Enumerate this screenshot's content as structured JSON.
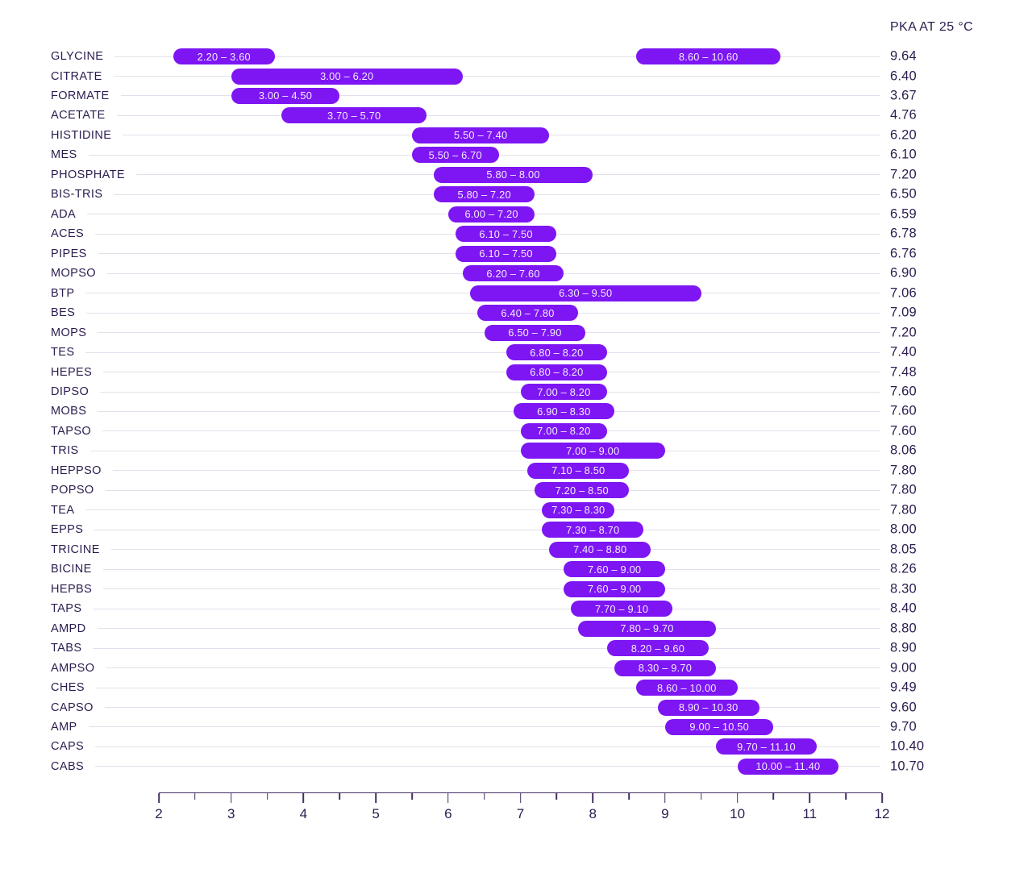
{
  "header": {
    "pka_column": "PKA AT 25 °C"
  },
  "colors": {
    "bar": "#7d16f3",
    "bar_text": "#f3ecfd",
    "text_dark": "#2c1c4f",
    "track_line": "#e4dfeb",
    "axis": "#443061",
    "background": "#ffffff"
  },
  "chart_data": {
    "type": "bar",
    "subtype": "horizontal-range",
    "title": "",
    "xlabel": "",
    "ylabel": "",
    "value_column_header": "PKA AT 25 °C",
    "x_axis": {
      "min": 2,
      "max": 12,
      "major_ticks": [
        2,
        3,
        4,
        5,
        6,
        7,
        8,
        9,
        10,
        11,
        12
      ],
      "minor_step": 0.5
    },
    "grid": "row-track-lines",
    "legend": "none",
    "rows": [
      {
        "name": "GLYCINE",
        "pka": "9.64",
        "ranges": [
          {
            "lo": 2.2,
            "hi": 3.6,
            "label": "2.20 – 3.60"
          },
          {
            "lo": 8.6,
            "hi": 10.6,
            "label": "8.60 – 10.60"
          }
        ]
      },
      {
        "name": "CITRATE",
        "pka": "6.40",
        "ranges": [
          {
            "lo": 3.0,
            "hi": 6.2,
            "label": "3.00 – 6.20"
          }
        ]
      },
      {
        "name": "FORMATE",
        "pka": "3.67",
        "ranges": [
          {
            "lo": 3.0,
            "hi": 4.5,
            "label": "3.00 – 4.50"
          }
        ]
      },
      {
        "name": "ACETATE",
        "pka": "4.76",
        "ranges": [
          {
            "lo": 3.7,
            "hi": 5.7,
            "label": "3.70 – 5.70"
          }
        ]
      },
      {
        "name": "HISTIDINE",
        "pka": "6.20",
        "ranges": [
          {
            "lo": 5.5,
            "hi": 7.4,
            "label": "5.50 – 7.40"
          }
        ]
      },
      {
        "name": "MES",
        "pka": "6.10",
        "ranges": [
          {
            "lo": 5.5,
            "hi": 6.7,
            "label": "5.50 – 6.70"
          }
        ]
      },
      {
        "name": "PHOSPHATE",
        "pka": "7.20",
        "ranges": [
          {
            "lo": 5.8,
            "hi": 8.0,
            "label": "5.80 – 8.00"
          }
        ]
      },
      {
        "name": "BIS-TRIS",
        "pka": "6.50",
        "ranges": [
          {
            "lo": 5.8,
            "hi": 7.2,
            "label": "5.80 – 7.20"
          }
        ]
      },
      {
        "name": "ADA",
        "pka": "6.59",
        "ranges": [
          {
            "lo": 6.0,
            "hi": 7.2,
            "label": "6.00 – 7.20"
          }
        ]
      },
      {
        "name": "ACES",
        "pka": "6.78",
        "ranges": [
          {
            "lo": 6.1,
            "hi": 7.5,
            "label": "6.10 – 7.50"
          }
        ]
      },
      {
        "name": "PIPES",
        "pka": "6.76",
        "ranges": [
          {
            "lo": 6.1,
            "hi": 7.5,
            "label": "6.10 – 7.50"
          }
        ]
      },
      {
        "name": "MOPSO",
        "pka": "6.90",
        "ranges": [
          {
            "lo": 6.2,
            "hi": 7.6,
            "label": "6.20 – 7.60"
          }
        ]
      },
      {
        "name": "BTP",
        "pka": "7.06",
        "ranges": [
          {
            "lo": 6.3,
            "hi": 9.5,
            "label": "6.30 – 9.50"
          }
        ]
      },
      {
        "name": "BES",
        "pka": "7.09",
        "ranges": [
          {
            "lo": 6.4,
            "hi": 7.8,
            "label": "6.40 – 7.80"
          }
        ]
      },
      {
        "name": "MOPS",
        "pka": "7.20",
        "ranges": [
          {
            "lo": 6.5,
            "hi": 7.9,
            "label": "6.50 – 7.90"
          }
        ]
      },
      {
        "name": "TES",
        "pka": "7.40",
        "ranges": [
          {
            "lo": 6.8,
            "hi": 8.2,
            "label": "6.80 – 8.20"
          }
        ]
      },
      {
        "name": "HEPES",
        "pka": "7.48",
        "ranges": [
          {
            "lo": 6.8,
            "hi": 8.2,
            "label": "6.80 – 8.20"
          }
        ]
      },
      {
        "name": "DIPSO",
        "pka": "7.60",
        "ranges": [
          {
            "lo": 7.0,
            "hi": 8.2,
            "label": "7.00 – 8.20"
          }
        ]
      },
      {
        "name": "MOBS",
        "pka": "7.60",
        "ranges": [
          {
            "lo": 6.9,
            "hi": 8.3,
            "label": "6.90 – 8.30"
          }
        ]
      },
      {
        "name": "TAPSO",
        "pka": "7.60",
        "ranges": [
          {
            "lo": 7.0,
            "hi": 8.2,
            "label": "7.00 – 8.20"
          }
        ]
      },
      {
        "name": "TRIS",
        "pka": "8.06",
        "ranges": [
          {
            "lo": 7.0,
            "hi": 9.0,
            "label": "7.00 – 9.00"
          }
        ]
      },
      {
        "name": "HEPPSO",
        "pka": "7.80",
        "ranges": [
          {
            "lo": 7.1,
            "hi": 8.5,
            "label": "7.10 – 8.50"
          }
        ]
      },
      {
        "name": "POPSO",
        "pka": "7.80",
        "ranges": [
          {
            "lo": 7.2,
            "hi": 8.5,
            "label": "7.20 – 8.50"
          }
        ]
      },
      {
        "name": "TEA",
        "pka": "7.80",
        "ranges": [
          {
            "lo": 7.3,
            "hi": 8.3,
            "label": "7.30 – 8.30"
          }
        ]
      },
      {
        "name": "EPPS",
        "pka": "8.00",
        "ranges": [
          {
            "lo": 7.3,
            "hi": 8.7,
            "label": "7.30 – 8.70"
          }
        ]
      },
      {
        "name": "TRICINE",
        "pka": "8.05",
        "ranges": [
          {
            "lo": 7.4,
            "hi": 8.8,
            "label": "7.40 – 8.80"
          }
        ]
      },
      {
        "name": "BICINE",
        "pka": "8.26",
        "ranges": [
          {
            "lo": 7.6,
            "hi": 9.0,
            "label": "7.60 – 9.00"
          }
        ]
      },
      {
        "name": "HEPBS",
        "pka": "8.30",
        "ranges": [
          {
            "lo": 7.6,
            "hi": 9.0,
            "label": "7.60 – 9.00"
          }
        ]
      },
      {
        "name": "TAPS",
        "pka": "8.40",
        "ranges": [
          {
            "lo": 7.7,
            "hi": 9.1,
            "label": "7.70 – 9.10"
          }
        ]
      },
      {
        "name": "AMPD",
        "pka": "8.80",
        "ranges": [
          {
            "lo": 7.8,
            "hi": 9.7,
            "label": "7.80 – 9.70"
          }
        ]
      },
      {
        "name": "TABS",
        "pka": "8.90",
        "ranges": [
          {
            "lo": 8.2,
            "hi": 9.6,
            "label": "8.20 – 9.60"
          }
        ]
      },
      {
        "name": "AMPSO",
        "pka": "9.00",
        "ranges": [
          {
            "lo": 8.3,
            "hi": 9.7,
            "label": "8.30 – 9.70"
          }
        ]
      },
      {
        "name": "CHES",
        "pka": "9.49",
        "ranges": [
          {
            "lo": 8.6,
            "hi": 10.0,
            "label": "8.60 – 10.00"
          }
        ]
      },
      {
        "name": "CAPSO",
        "pka": "9.60",
        "ranges": [
          {
            "lo": 8.9,
            "hi": 10.3,
            "label": "8.90 – 10.30"
          }
        ]
      },
      {
        "name": "AMP",
        "pka": "9.70",
        "ranges": [
          {
            "lo": 9.0,
            "hi": 10.5,
            "label": "9.00 – 10.50"
          }
        ]
      },
      {
        "name": "CAPS",
        "pka": "10.40",
        "ranges": [
          {
            "lo": 9.7,
            "hi": 11.1,
            "label": "9.70 – 11.10"
          }
        ]
      },
      {
        "name": "CABS",
        "pka": "10.70",
        "ranges": [
          {
            "lo": 10.0,
            "hi": 11.4,
            "label": "10.00 – 11.40"
          }
        ]
      }
    ]
  }
}
